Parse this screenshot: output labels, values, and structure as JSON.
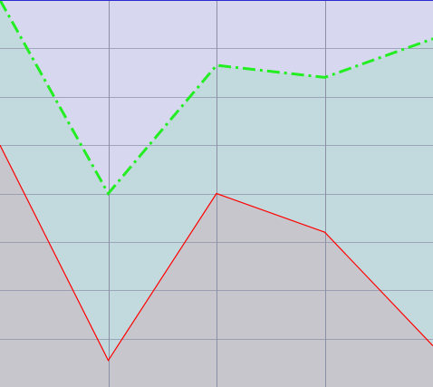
{
  "chart_data": {
    "type": "area",
    "title": "",
    "xlabel": "",
    "ylabel": "",
    "x": [
      0,
      1,
      2,
      3,
      4
    ],
    "xlim": [
      0,
      4
    ],
    "ylim": [
      0,
      8
    ],
    "grid": true,
    "legend": "none",
    "series": [
      {
        "values": [
          5.0,
          0.55,
          4.0,
          3.2,
          0.85
        ],
        "line_color": "#ff0000",
        "line_style": "solid",
        "fill_color": "#c6c6cc"
      },
      {
        "values": [
          8.0,
          4.0,
          6.65,
          6.4,
          7.2
        ],
        "line_color": "#22ee22",
        "line_style": "dash-dot",
        "fill_color": "#c2dadd"
      }
    ]
  },
  "colors": {
    "plot_background": "#d7d7f0",
    "grid": "#8a8fa6",
    "top_border": "#2a2ad0"
  }
}
